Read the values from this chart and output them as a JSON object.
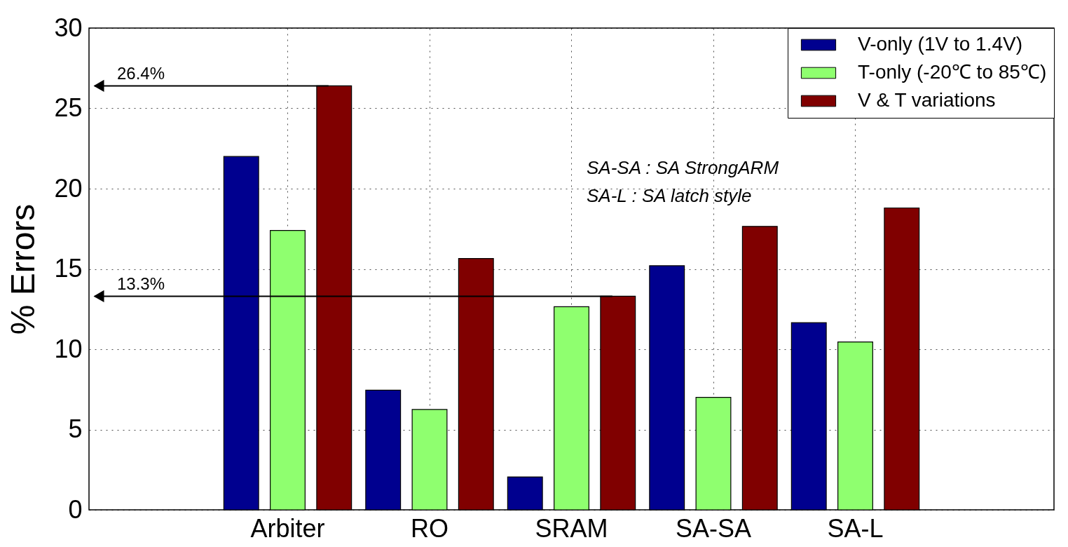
{
  "chart_data": {
    "type": "bar",
    "ylabel": "% Errors",
    "categories": [
      "Arbiter",
      "RO",
      "SRAM",
      "SA-SA",
      "SA-L"
    ],
    "series": [
      {
        "name": "V-only (1V to 1.4V)",
        "color": "#00008f",
        "values": [
          22.0,
          7.45,
          2.05,
          15.2,
          11.65
        ]
      },
      {
        "name": "T-only (-20℃ to 85℃)",
        "color": "#8fff6f",
        "values": [
          17.4,
          6.25,
          12.65,
          7.0,
          10.45
        ]
      },
      {
        "name": "V & T variations",
        "color": "#800000",
        "values": [
          26.4,
          15.65,
          13.3,
          17.65,
          18.8
        ]
      }
    ],
    "ylim": [
      0,
      30
    ],
    "yticks": [
      0,
      5,
      10,
      15,
      20,
      25,
      30
    ],
    "grid": true,
    "legend": "top right",
    "ref_lines": [
      {
        "axis": "y",
        "value": 26.4,
        "label": "26.4%"
      },
      {
        "axis": "y",
        "value": 13.3,
        "label": "13.3%"
      }
    ],
    "annotations": [
      "SA-SA : SA StrongARM",
      "SA-L : SA latch style"
    ]
  }
}
